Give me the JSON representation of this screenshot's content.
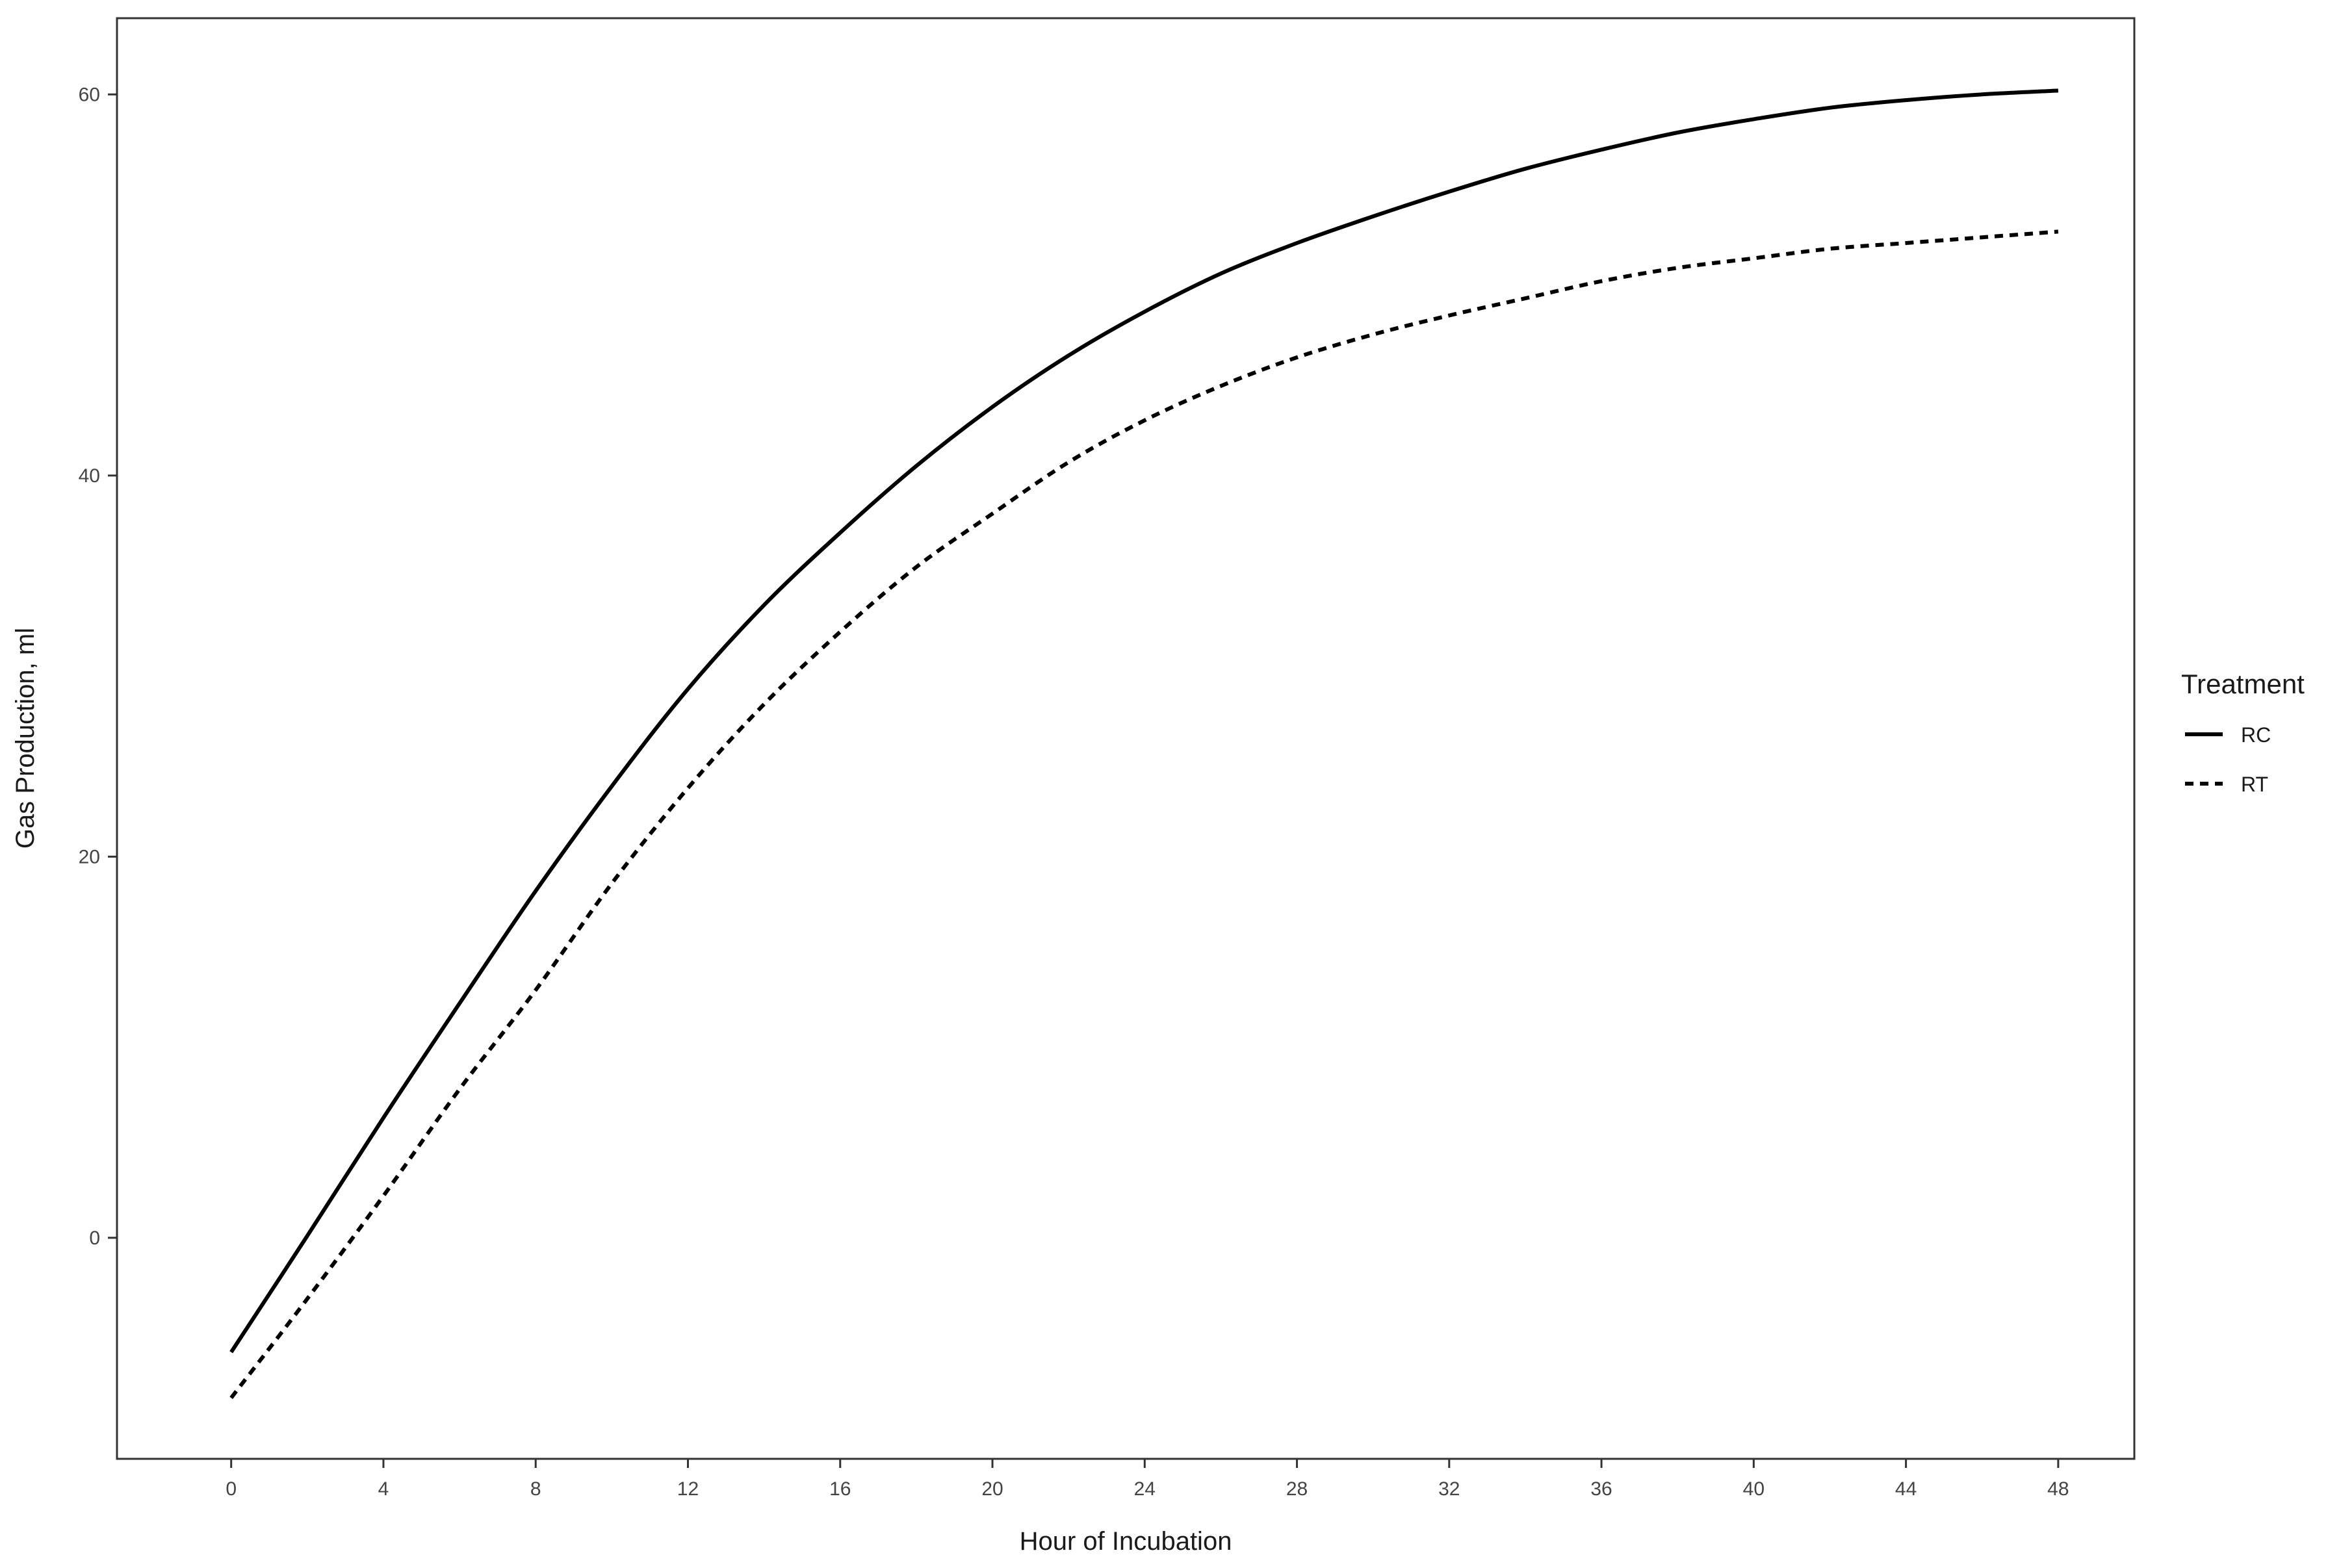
{
  "chart_data": {
    "type": "line",
    "title": "",
    "xlabel": "Hour of Incubation",
    "ylabel": "Gas Production, ml",
    "xlim": [
      -3,
      50
    ],
    "ylim": [
      -11.6,
      64
    ],
    "x_ticks": [
      0,
      4,
      8,
      12,
      16,
      20,
      24,
      28,
      32,
      36,
      40,
      44,
      48
    ],
    "y_ticks": [
      0,
      20,
      40,
      60
    ],
    "grid": false,
    "legend": {
      "title": "Treatment",
      "position": "right"
    },
    "series": [
      {
        "name": "RC",
        "line_style": "solid",
        "color": "#000000",
        "x": [
          0,
          2,
          4,
          6,
          8,
          10,
          12,
          14,
          16,
          18,
          20,
          22,
          24,
          26,
          28,
          30,
          32,
          34,
          36,
          38,
          40,
          42,
          44,
          46,
          48
        ],
        "y": [
          -6.0,
          0.1,
          6.3,
          12.3,
          18.2,
          23.7,
          28.8,
          33.2,
          37.0,
          40.5,
          43.6,
          46.3,
          48.6,
          50.6,
          52.2,
          53.6,
          54.9,
          56.1,
          57.1,
          58.0,
          58.7,
          59.3,
          59.7,
          60.0,
          60.2
        ]
      },
      {
        "name": "RT",
        "line_style": "dashed",
        "color": "#000000",
        "x": [
          0,
          2,
          4,
          6,
          8,
          10,
          12,
          14,
          16,
          18,
          20,
          22,
          24,
          26,
          28,
          30,
          32,
          34,
          36,
          38,
          40,
          42,
          44,
          46,
          48
        ],
        "y": [
          -8.4,
          -3.2,
          2.2,
          7.8,
          13.0,
          18.6,
          23.6,
          28.0,
          31.8,
          35.2,
          38.0,
          40.7,
          42.9,
          44.7,
          46.2,
          47.4,
          48.4,
          49.3,
          50.2,
          50.9,
          51.4,
          51.9,
          52.2,
          52.5,
          52.8
        ]
      }
    ]
  }
}
